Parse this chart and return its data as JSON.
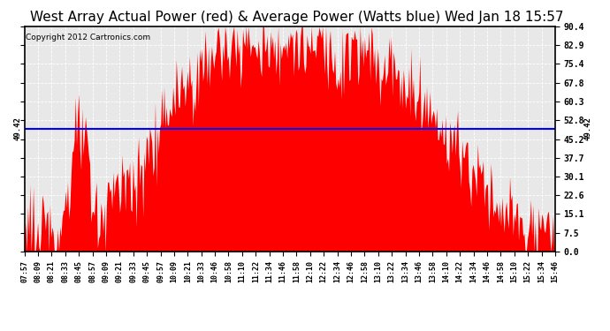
{
  "title": "West Array Actual Power (red) & Average Power (Watts blue) Wed Jan 18 15:57",
  "copyright": "Copyright 2012 Cartronics.com",
  "avg_power": 49.42,
  "ymin": 0.0,
  "ymax": 90.4,
  "yticks": [
    0.0,
    7.5,
    15.1,
    22.6,
    30.1,
    37.7,
    45.2,
    52.8,
    60.3,
    67.8,
    75.4,
    82.9,
    90.4
  ],
  "fill_color": "#FF0000",
  "line_color": "#0000FF",
  "bg_color": "#FFFFFF",
  "plot_bg_color": "#E8E8E8",
  "title_fontsize": 11,
  "copyright_fontsize": 6.5,
  "xtick_labels": [
    "07:57",
    "08:09",
    "08:21",
    "08:33",
    "08:45",
    "08:57",
    "09:09",
    "09:21",
    "09:33",
    "09:45",
    "09:57",
    "10:09",
    "10:21",
    "10:33",
    "10:46",
    "10:58",
    "11:10",
    "11:22",
    "11:34",
    "11:46",
    "11:58",
    "12:10",
    "12:22",
    "12:34",
    "12:46",
    "12:58",
    "13:10",
    "13:22",
    "13:34",
    "13:46",
    "13:58",
    "14:10",
    "14:22",
    "14:34",
    "14:46",
    "14:58",
    "15:10",
    "15:22",
    "15:34",
    "15:46"
  ],
  "avg_label": "49.42"
}
